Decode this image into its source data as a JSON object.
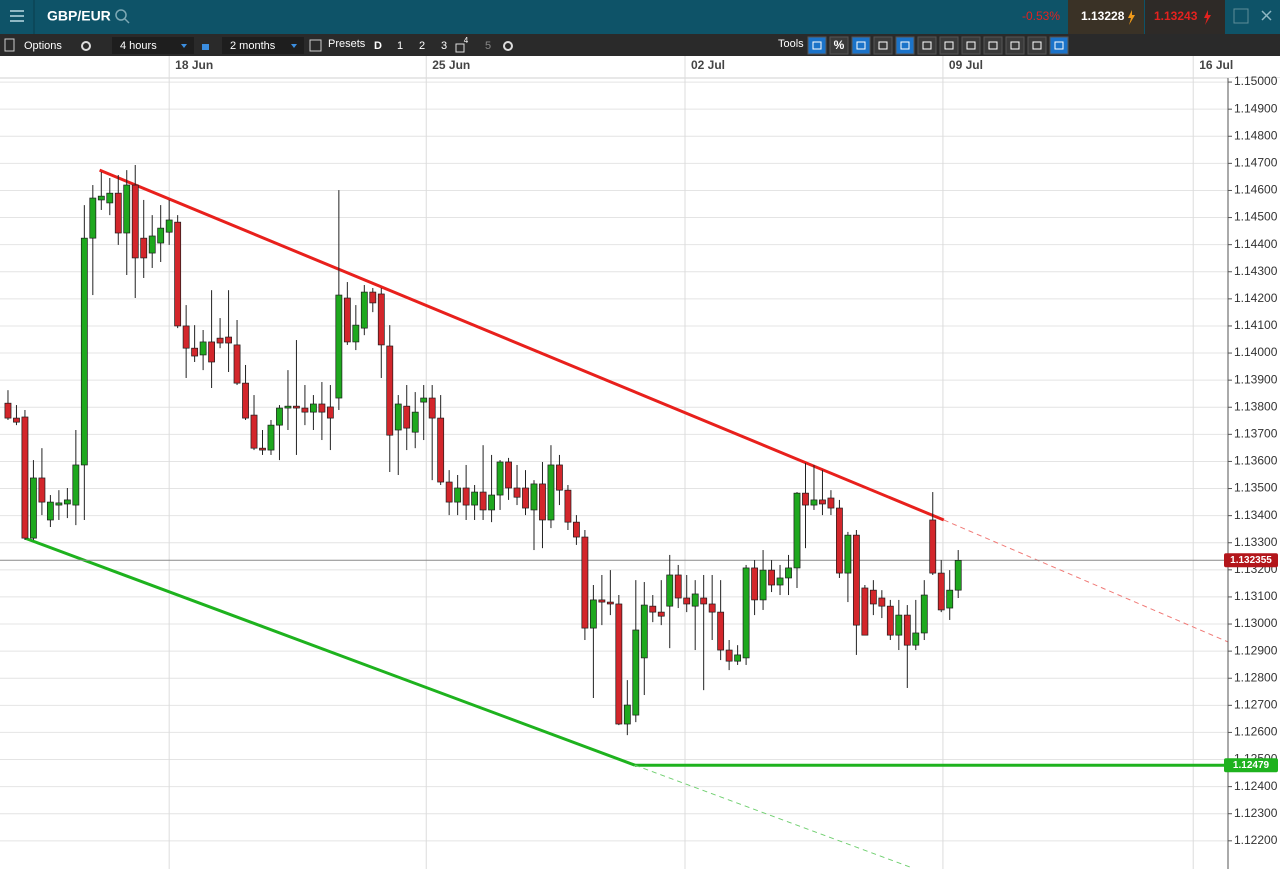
{
  "header": {
    "symbol": "GBP/EUR",
    "change": "-0.53%",
    "sell": "1.13228",
    "buy": "1.13243"
  },
  "toolbar": {
    "options": "Options",
    "interval": "4 hours",
    "range": "2 months",
    "presets_label": "Presets",
    "presets": [
      "D",
      "1",
      "2",
      "3",
      "4",
      "5"
    ],
    "tools": "Tools",
    "percent": "%"
  },
  "chart_data": {
    "type": "candlestick",
    "up_color": "#1ea81e",
    "down_color": "#d3262b",
    "grid": true,
    "x": [
      -19,
      -18,
      -17,
      -16,
      -15,
      -14,
      -13,
      -12,
      -11,
      -10,
      -9,
      -8,
      -7,
      -6,
      -5,
      -4,
      -3,
      -2,
      -1,
      0,
      1,
      2,
      3,
      4,
      5,
      6,
      7,
      8,
      9,
      10,
      11,
      12,
      13,
      14,
      15,
      16,
      17,
      18,
      19,
      20,
      21,
      22,
      23,
      24,
      25,
      26,
      27,
      28,
      29,
      30,
      31,
      32,
      33,
      34,
      35,
      36,
      37,
      38,
      39,
      40,
      41,
      42,
      43,
      44,
      45,
      46,
      47,
      48,
      49,
      50,
      51,
      52,
      53,
      54,
      55,
      56,
      57,
      58,
      59,
      60,
      61,
      62,
      63,
      64,
      65,
      66,
      67,
      68,
      69,
      70,
      71,
      72,
      73,
      74,
      75,
      76,
      77,
      78,
      79,
      80,
      81,
      82,
      83,
      84,
      85,
      86,
      87,
      88,
      89,
      90,
      91,
      92,
      93
    ],
    "open": [
      1.13815,
      1.1376,
      1.13764,
      1.13317,
      1.13539,
      1.13384,
      1.13439,
      1.13443,
      1.13439,
      1.13587,
      1.14424,
      1.14565,
      1.14554,
      1.1459,
      1.14443,
      1.1462,
      1.14424,
      1.14369,
      1.14406,
      1.14446,
      1.14483,
      1.141,
      1.14018,
      1.13993,
      1.14041,
      1.14055,
      1.14059,
      1.1403,
      1.13889,
      1.13771,
      1.13649,
      1.13642,
      1.13734,
      1.13797,
      1.13804,
      1.13797,
      1.13782,
      1.13812,
      1.13801,
      1.13834,
      1.14203,
      1.14041,
      1.14092,
      1.14225,
      1.14218,
      1.14026,
      1.13716,
      1.13804,
      1.13708,
      1.13819,
      1.13834,
      1.1376,
      1.13524,
      1.1345,
      1.13502,
      1.13439,
      1.13487,
      1.13421,
      1.13476,
      1.13598,
      1.13502,
      1.13502,
      1.13421,
      1.13517,
      1.13384,
      1.13587,
      1.13494,
      1.13376,
      1.13321,
      1.12985,
      1.13089,
      1.13081,
      1.13074,
      1.12631,
      1.12664,
      1.12875,
      1.13066,
      1.13044,
      1.13066,
      1.13181,
      1.13096,
      1.13066,
      1.13096,
      1.13074,
      1.13044,
      1.12904,
      1.12863,
      1.12875,
      1.13207,
      1.13089,
      1.13199,
      1.13144,
      1.1317,
      1.13207,
      1.13483,
      1.13439,
      1.13458,
      1.13465,
      1.13428,
      1.13188,
      1.13328,
      1.13133,
      1.13125,
      1.13096,
      1.13066,
      1.12959,
      1.13033,
      1.12922,
      1.12967,
      1.13384,
      1.13188,
      1.13059,
      1.13125
    ],
    "high": [
      1.13863,
      1.13808,
      1.1379,
      1.13605,
      1.13649,
      1.13476,
      1.13494,
      1.13502,
      1.13716,
      1.14546,
      1.1462,
      1.14668,
      1.14646,
      1.14657,
      1.14675,
      1.14694,
      1.14565,
      1.14509,
      1.14546,
      1.14565,
      1.14509,
      1.14177,
      1.14103,
      1.14085,
      1.14232,
      1.14129,
      1.14232,
      1.14122,
      1.13956,
      1.13845,
      1.13716,
      1.13753,
      1.13808,
      1.13937,
      1.14048,
      1.13882,
      1.13845,
      1.13893,
      1.13882,
      1.14601,
      1.14262,
      1.14177,
      1.14251,
      1.1424,
      1.1424,
      1.14103,
      1.13845,
      1.13882,
      1.13856,
      1.13882,
      1.13882,
      1.13845,
      1.13568,
      1.1355,
      1.13587,
      1.13513,
      1.1366,
      1.13624,
      1.13605,
      1.13613,
      1.13587,
      1.13568,
      1.13531,
      1.13598,
      1.1366,
      1.13624,
      1.13513,
      1.13402,
      1.13347,
      1.13144,
      1.13181,
      1.13199,
      1.13107,
      1.12793,
      1.13162,
      1.13155,
      1.13107,
      1.13162,
      1.13255,
      1.13218,
      1.13181,
      1.13162,
      1.13181,
      1.13181,
      1.13162,
      1.12941,
      1.12922,
      1.13218,
      1.13236,
      1.13273,
      1.13236,
      1.13218,
      1.13255,
      1.13487,
      1.13594,
      1.13587,
      1.13568,
      1.13494,
      1.13458,
      1.1334,
      1.13347,
      1.13144,
      1.13162,
      1.13125,
      1.13089,
      1.13089,
      1.1307,
      1.13089,
      1.13162,
      1.13487,
      1.13236,
      1.13199,
      1.13273
    ],
    "low": [
      1.13753,
      1.13734,
      1.1331,
      1.1331,
      1.13402,
      1.13358,
      1.13384,
      1.13391,
      1.13365,
      1.13384,
      1.14214,
      1.14528,
      1.14509,
      1.14399,
      1.14288,
      1.14203,
      1.14277,
      1.14314,
      1.14336,
      1.14399,
      1.14092,
      1.13908,
      1.13967,
      1.13937,
      1.13871,
      1.14018,
      1.1393,
      1.13882,
      1.13753,
      1.13642,
      1.13624,
      1.13624,
      1.13605,
      1.13716,
      1.13624,
      1.13734,
      1.13716,
      1.13679,
      1.13642,
      1.1379,
      1.1403,
      1.14011,
      1.14066,
      1.14151,
      1.13908,
      1.13561,
      1.1355,
      1.13642,
      1.13649,
      1.13679,
      1.13531,
      1.13513,
      1.13402,
      1.13402,
      1.13384,
      1.13384,
      1.13384,
      1.13376,
      1.13421,
      1.13458,
      1.13439,
      1.13402,
      1.13273,
      1.1328,
      1.13354,
      1.13439,
      1.13347,
      1.13292,
      1.12941,
      1.12727,
      1.12996,
      1.13033,
      1.12627,
      1.1259,
      1.12638,
      1.12738,
      1.13007,
      1.12996,
      1.12911,
      1.13059,
      1.13044,
      1.12904,
      1.12756,
      1.12941,
      1.12867,
      1.1283,
      1.12849,
      1.12849,
      1.13033,
      1.13052,
      1.13118,
      1.13107,
      1.13107,
      1.13133,
      1.1328,
      1.13421,
      1.13402,
      1.13402,
      1.1317,
      1.13081,
      1.12886,
      1.12959,
      1.13033,
      1.13022,
      1.12941,
      1.12904,
      1.12764,
      1.12904,
      1.12941,
      1.13181,
      1.13044,
      1.13015,
      1.13096
    ],
    "close": [
      1.1376,
      1.13745,
      1.13317,
      1.13539,
      1.1345,
      1.1345,
      1.13447,
      1.13458,
      1.13587,
      1.14424,
      1.14572,
      1.14579,
      1.1459,
      1.14443,
      1.1462,
      1.14351,
      1.14351,
      1.14432,
      1.14461,
      1.14491,
      1.141,
      1.14018,
      1.13989,
      1.14041,
      1.13967,
      1.14037,
      1.14037,
      1.13889,
      1.1376,
      1.13649,
      1.13642,
      1.13734,
      1.13797,
      1.13804,
      1.13797,
      1.13782,
      1.13812,
      1.13782,
      1.1376,
      1.14214,
      1.14041,
      1.14103,
      1.14225,
      1.14185,
      1.1403,
      1.13697,
      1.13812,
      1.13723,
      1.13782,
      1.13834,
      1.1376,
      1.13524,
      1.1345,
      1.13502,
      1.13439,
      1.13487,
      1.13421,
      1.13476,
      1.13598,
      1.13502,
      1.13468,
      1.13428,
      1.13517,
      1.13384,
      1.13587,
      1.13494,
      1.13376,
      1.13321,
      1.12985,
      1.13089,
      1.13081,
      1.13074,
      1.12631,
      1.12701,
      1.12978,
      1.1307,
      1.13044,
      1.13029,
      1.13181,
      1.13096,
      1.13074,
      1.13111,
      1.13074,
      1.13044,
      1.12904,
      1.12863,
      1.12886,
      1.13207,
      1.13089,
      1.13199,
      1.13144,
      1.1317,
      1.13207,
      1.13483,
      1.13439,
      1.13458,
      1.13443,
      1.13428,
      1.13188,
      1.13328,
      1.12996,
      1.12959,
      1.13074,
      1.13066,
      1.12959,
      1.13033,
      1.12922,
      1.12967,
      1.13107,
      1.13188,
      1.13052,
      1.13125,
      1.13235
    ],
    "xlim": [
      -19.94,
      124.8
    ],
    "xticks": [
      {
        "value": 0,
        "label": "18 Jun"
      },
      {
        "value": 30.3,
        "label": "25 Jun"
      },
      {
        "value": 60.8,
        "label": "02 Jul"
      },
      {
        "value": 91.2,
        "label": "09 Jul"
      },
      {
        "value": 120.7,
        "label": "16 Jul"
      }
    ],
    "ylim": [
      1.12096,
      1.15015
    ],
    "yticks": [
      {
        "value": 1.122,
        "label": "1.12200"
      },
      {
        "value": 1.123,
        "label": "1.12300"
      },
      {
        "value": 1.124,
        "label": "1.12400"
      },
      {
        "value": 1.125,
        "label": "1.12500"
      },
      {
        "value": 1.126,
        "label": "1.12600"
      },
      {
        "value": 1.127,
        "label": "1.12700"
      },
      {
        "value": 1.128,
        "label": "1.12800"
      },
      {
        "value": 1.129,
        "label": "1.12900"
      },
      {
        "value": 1.13,
        "label": "1.13000"
      },
      {
        "value": 1.131,
        "label": "1.13100"
      },
      {
        "value": 1.132,
        "label": "1.13200"
      },
      {
        "value": 1.133,
        "label": "1.13300"
      },
      {
        "value": 1.134,
        "label": "1.13400"
      },
      {
        "value": 1.135,
        "label": "1.13500"
      },
      {
        "value": 1.136,
        "label": "1.13600"
      },
      {
        "value": 1.137,
        "label": "1.13700"
      },
      {
        "value": 1.138,
        "label": "1.13800"
      },
      {
        "value": 1.139,
        "label": "1.13900"
      },
      {
        "value": 1.14,
        "label": "1.14000"
      },
      {
        "value": 1.141,
        "label": "1.14100"
      },
      {
        "value": 1.142,
        "label": "1.14200"
      },
      {
        "value": 1.143,
        "label": "1.14300"
      },
      {
        "value": 1.144,
        "label": "1.14400"
      },
      {
        "value": 1.145,
        "label": "1.14500"
      },
      {
        "value": 1.146,
        "label": "1.14600"
      },
      {
        "value": 1.147,
        "label": "1.14700"
      },
      {
        "value": 1.148,
        "label": "1.14800"
      },
      {
        "value": 1.149,
        "label": "1.14900"
      },
      {
        "value": 1.15,
        "label": "1.15000"
      }
    ],
    "trendlines": [
      {
        "color": "#e8201c",
        "style": "solid",
        "x": [
          -8.2,
          91.3
        ],
        "y": [
          1.14675,
          1.13384
        ]
      },
      {
        "color": "#f07a77",
        "style": "dashed",
        "x": [
          91.3,
          124.8
        ],
        "y": [
          1.13384,
          1.12934
        ]
      },
      {
        "color": "#1eb21e",
        "style": "solid",
        "x": [
          -17,
          54.9
        ],
        "y": [
          1.13317,
          1.12479
        ]
      },
      {
        "color": "#1eb21e",
        "style": "solid",
        "x": [
          54.9,
          124.8
        ],
        "y": [
          1.12479,
          1.12479
        ]
      },
      {
        "color": "#6fcf6f",
        "style": "dashed",
        "x": [
          54.9,
          87.6
        ],
        "y": [
          1.12479,
          1.121
        ]
      }
    ],
    "price_markers": [
      {
        "value": 1.132355,
        "label": "1.132355",
        "color": "#b3161b",
        "line": true
      },
      {
        "value": 1.12479,
        "label": "1.12479",
        "color": "#1eb21e",
        "line": false
      }
    ]
  }
}
